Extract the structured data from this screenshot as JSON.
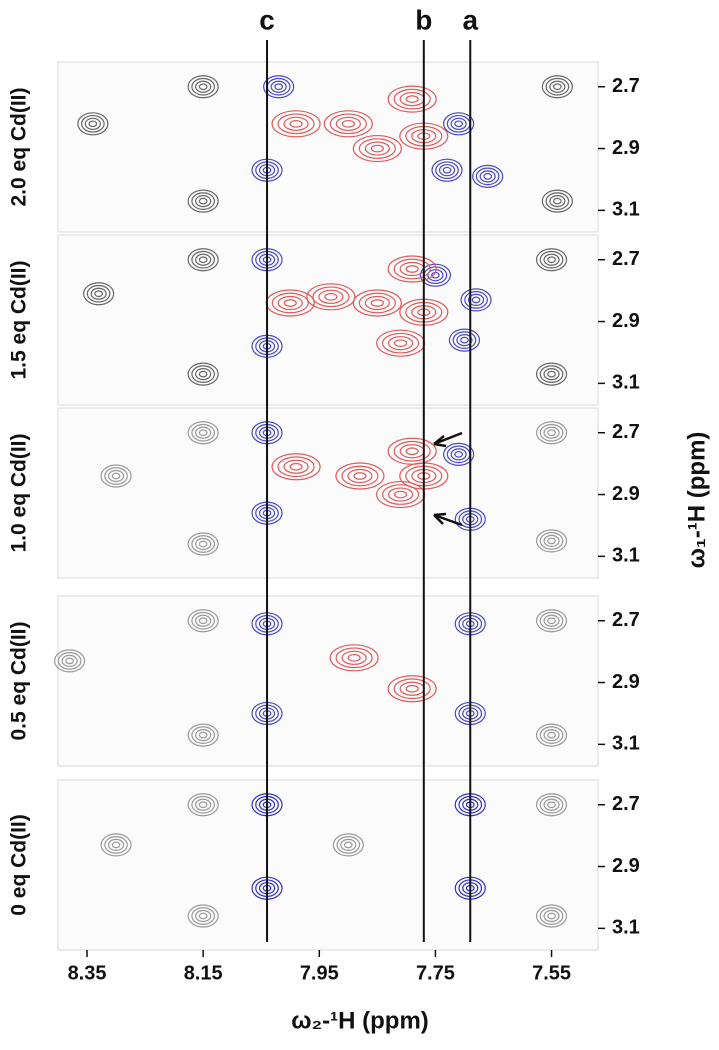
{
  "chart_data": {
    "type": "contour",
    "xlabel": "ω₂-¹H (ppm)",
    "ylabel": "ω₁-¹H (ppm)",
    "xlim": [
      8.4,
      7.47
    ],
    "xticks": [
      8.35,
      8.15,
      7.95,
      7.75,
      7.55
    ],
    "lines": [
      {
        "label": "c",
        "x": 8.04
      },
      {
        "label": "b",
        "x": 7.77
      },
      {
        "label": "a",
        "x": 7.69
      }
    ],
    "panels": [
      {
        "title": "2.0 eq Cd(II)",
        "ylim": [
          2.62,
          3.17
        ],
        "yticks": [
          2.7,
          2.9,
          3.1
        ],
        "series": [
          {
            "color": "#666666",
            "x": [
              8.34,
              8.15,
              8.15,
              7.54,
              7.54
            ],
            "y": [
              2.82,
              2.7,
              3.07,
              2.7,
              3.07
            ]
          },
          {
            "color": "#4848c8",
            "x": [
              8.04,
              8.02,
              7.73,
              7.66,
              7.71
            ],
            "y": [
              2.97,
              2.7,
              2.97,
              2.99,
              2.82
            ]
          },
          {
            "color": "#e05a5a",
            "x": [
              7.77,
              7.85,
              7.9,
              7.99,
              7.79
            ],
            "y": [
              2.86,
              2.9,
              2.82,
              2.82,
              2.74
            ]
          }
        ]
      },
      {
        "title": "1.5 eq Cd(II)",
        "ylim": [
          2.62,
          3.17
        ],
        "yticks": [
          2.7,
          2.9,
          3.1
        ],
        "series": [
          {
            "color": "#666666",
            "x": [
              8.33,
              8.15,
              8.15,
              7.55,
              7.55
            ],
            "y": [
              2.81,
              2.7,
              3.07,
              2.7,
              3.07
            ]
          },
          {
            "color": "#4848c8",
            "x": [
              8.04,
              8.04,
              7.68,
              7.7,
              7.75
            ],
            "y": [
              2.7,
              2.98,
              2.83,
              2.96,
              2.75
            ]
          },
          {
            "color": "#e05a5a",
            "x": [
              7.77,
              7.85,
              7.93,
              8.0,
              7.81,
              7.79
            ],
            "y": [
              2.87,
              2.84,
              2.82,
              2.84,
              2.97,
              2.73
            ]
          }
        ]
      },
      {
        "title": "1.0 eq Cd(II)",
        "ylim": [
          2.62,
          3.17
        ],
        "yticks": [
          2.7,
          2.9,
          3.1
        ],
        "series": [
          {
            "color": "#999999",
            "x": [
              8.3,
              8.15,
              8.15,
              7.55,
              7.55
            ],
            "y": [
              2.84,
              2.7,
              3.06,
              2.7,
              3.05
            ]
          },
          {
            "color": "#4848c8",
            "x": [
              8.04,
              8.04,
              7.69,
              7.71
            ],
            "y": [
              2.7,
              2.96,
              2.98,
              2.77
            ]
          },
          {
            "color": "#e05a5a",
            "x": [
              7.77,
              7.81,
              7.88,
              7.99,
              7.79
            ],
            "y": [
              2.84,
              2.9,
              2.84,
              2.81,
              2.76
            ]
          }
        ]
      },
      {
        "title": "0.5 eq Cd(II)",
        "ylim": [
          2.62,
          3.17
        ],
        "yticks": [
          2.7,
          2.9,
          3.1
        ],
        "series": [
          {
            "color": "#999999",
            "x": [
              8.38,
              8.15,
              8.15,
              7.55,
              7.55
            ],
            "y": [
              2.83,
              2.7,
              3.07,
              2.7,
              3.07
            ]
          },
          {
            "color": "#4848c8",
            "x": [
              8.04,
              8.04,
              7.69,
              7.69
            ],
            "y": [
              2.71,
              3.0,
              2.71,
              3.0
            ]
          },
          {
            "color": "#e05a5a",
            "x": [
              7.89,
              7.79
            ],
            "y": [
              2.82,
              2.92
            ]
          }
        ]
      },
      {
        "title": "0 eq Cd(II)",
        "ylim": [
          2.62,
          3.17
        ],
        "yticks": [
          2.7,
          2.9,
          3.1
        ],
        "series": [
          {
            "color": "#999999",
            "x": [
              8.3,
              8.15,
              8.15,
              7.9,
              7.55,
              7.55
            ],
            "y": [
              2.83,
              2.7,
              3.06,
              2.83,
              2.7,
              3.06
            ]
          },
          {
            "color": "#3030c0",
            "x": [
              8.04,
              8.04,
              7.69,
              7.69
            ],
            "y": [
              2.7,
              2.97,
              2.7,
              2.97
            ]
          }
        ]
      }
    ]
  }
}
